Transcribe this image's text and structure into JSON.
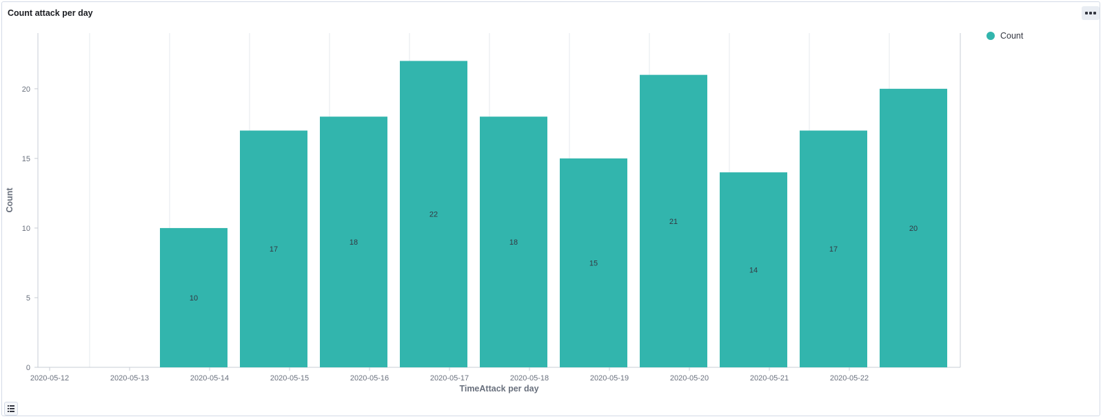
{
  "panel": {
    "title": "Count attack per day"
  },
  "legend": {
    "entries": [
      {
        "label": "Count",
        "color": "#32b5ad"
      }
    ]
  },
  "colors": {
    "bar": "#32b5ad",
    "grid": "#e6e9ee",
    "axis": "#c7ccd4",
    "tick_text": "#69707d",
    "value_text": "#343741"
  },
  "icons": {
    "panel_menu": "ellipsis-icon",
    "legend_toggle": "list-icon"
  },
  "chart_data": {
    "type": "bar",
    "title": "Count attack per day",
    "xlabel": "TimeAttack per day",
    "ylabel": "Count",
    "ylim": [
      0,
      24
    ],
    "y_ticks": [
      0,
      5,
      10,
      15,
      20
    ],
    "x_ticks": [
      "2020-05-12",
      "2020-05-13",
      "2020-05-14",
      "2020-05-15",
      "2020-05-16",
      "2020-05-17",
      "2020-05-18",
      "2020-05-19",
      "2020-05-20",
      "2020-05-21",
      "2020-05-22"
    ],
    "categories": [
      "2020-05-13",
      "2020-05-14",
      "2020-05-15",
      "2020-05-16",
      "2020-05-17",
      "2020-05-18",
      "2020-05-19",
      "2020-05-20",
      "2020-05-21",
      "2020-05-22"
    ],
    "series": [
      {
        "name": "Count",
        "values": [
          10,
          17,
          18,
          22,
          18,
          15,
          21,
          14,
          17,
          20
        ]
      }
    ],
    "grid": true,
    "legend_position": "top-right"
  }
}
